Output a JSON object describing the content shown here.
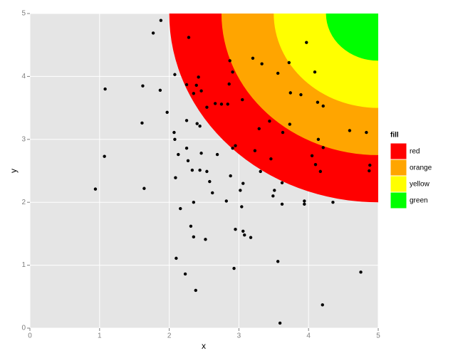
{
  "chart_data": {
    "type": "scatter",
    "x_label": "x",
    "y_label": "y",
    "xlim": [
      0,
      5
    ],
    "ylim": [
      0,
      5
    ],
    "xticks": [
      0,
      1,
      2,
      3,
      4,
      5
    ],
    "yticks": [
      0,
      1,
      2,
      3,
      4,
      5
    ],
    "grid": true,
    "point_color": "#000000",
    "legend_title": "fill",
    "legend_position": "right",
    "region_center": [
      5,
      5
    ],
    "regions": [
      {
        "name": "red",
        "color": "#ff0000",
        "radius": 3
      },
      {
        "name": "orange",
        "color": "#ffa500",
        "radius": 2.25
      },
      {
        "name": "yellow",
        "color": "#ffff00",
        "radius": 1.5
      },
      {
        "name": "green",
        "color": "#00ff00",
        "radius": 0.75
      }
    ],
    "x": [
      0.94,
      1.08,
      1.07,
      1.61,
      1.62,
      1.64,
      1.77,
      1.88,
      1.87,
      1.97,
      2.08,
      2.07,
      2.08,
      2.13,
      2.09,
      2.16,
      2.1,
      2.23,
      2.38,
      2.28,
      2.25,
      2.25,
      2.25,
      2.27,
      2.35,
      2.39,
      2.42,
      2.46,
      2.4,
      2.44,
      2.46,
      2.33,
      2.44,
      2.54,
      2.35,
      2.58,
      2.62,
      2.31,
      2.35,
      2.52,
      2.54,
      2.66,
      2.75,
      2.84,
      2.86,
      2.87,
      2.69,
      2.91,
      2.91,
      2.95,
      2.88,
      2.82,
      3.02,
      3.06,
      3.04,
      2.95,
      3.06,
      3.08,
      3.17,
      2.93,
      3.05,
      3.2,
      3.33,
      3.29,
      3.23,
      3.31,
      3.44,
      3.46,
      3.51,
      3.49,
      3.56,
      3.72,
      3.74,
      3.73,
      3.63,
      3.62,
      3.62,
      3.56,
      3.59,
      3.89,
      3.97,
      4.09,
      4.13,
      4.21,
      4.14,
      4.05,
      4.1,
      4.17,
      4.21,
      3.94,
      3.94,
      4.35,
      4.2,
      4.59,
      4.83,
      4.88,
      4.87,
      4.75
    ],
    "y": [
      2.21,
      3.8,
      2.73,
      3.26,
      3.85,
      2.22,
      4.69,
      4.89,
      3.78,
      3.43,
      4.03,
      3.11,
      3.0,
      2.76,
      2.39,
      1.9,
      1.11,
      0.86,
      0.6,
      4.62,
      3.87,
      3.3,
      2.86,
      2.66,
      3.73,
      3.86,
      3.99,
      3.77,
      3.25,
      3.21,
      2.78,
      2.51,
      2.51,
      2.49,
      2.0,
      2.33,
      2.15,
      1.62,
      1.45,
      1.41,
      3.51,
      3.57,
      3.56,
      3.56,
      3.88,
      4.25,
      2.76,
      4.07,
      2.86,
      2.9,
      2.42,
      2.02,
      2.19,
      2.3,
      1.93,
      1.57,
      1.54,
      1.48,
      1.44,
      0.95,
      3.63,
      4.29,
      4.2,
      3.17,
      2.82,
      2.49,
      3.29,
      2.69,
      2.19,
      2.1,
      4.05,
      4.22,
      3.74,
      3.24,
      3.11,
      2.31,
      1.97,
      1.06,
      0.08,
      3.71,
      4.54,
      4.07,
      3.59,
      3.53,
      3.0,
      2.74,
      2.6,
      2.49,
      2.87,
      2.02,
      1.97,
      2.0,
      0.37,
      3.14,
      3.11,
      2.59,
      2.5,
      0.89
    ]
  }
}
